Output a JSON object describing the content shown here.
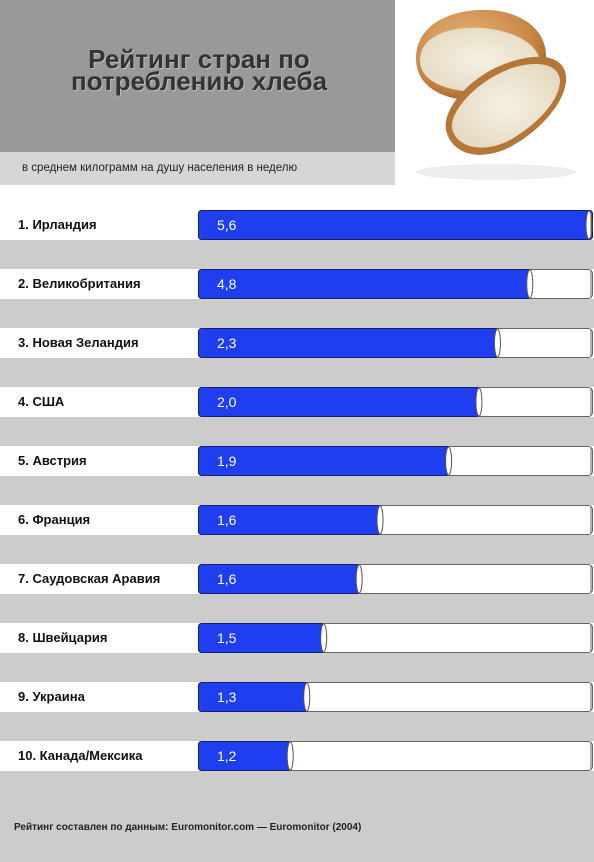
{
  "header": {
    "title_line1": "Рейтинг стран по",
    "title_line2": "потреблению хлеба",
    "subtitle": "в среднем килограмм на душу населения в неделю"
  },
  "colors": {
    "bar_fill": "#1e3ef0",
    "track_fill": "#ffffff",
    "band": "#cccccc",
    "header_bg": "#999999"
  },
  "chart_data": {
    "type": "bar",
    "orientation": "horizontal",
    "title": "Рейтинг стран по потреблению хлеба",
    "subtitle": "в среднем килограмм на душу населения в неделю",
    "categories": [
      "1. Ирландия",
      "2. Великобритания",
      "3. Новая Зеландия",
      "4. США",
      "5. Австрия",
      "6. Франция",
      "7. Саудовская Аравия",
      "8. Швейцария",
      "9. Украина",
      "10. Канада/Мексика"
    ],
    "value_labels": [
      "5,6",
      "4,8",
      "2,3",
      "2,0",
      "1,9",
      "1,6",
      "1,6",
      "1,5",
      "1,3",
      "1,2"
    ],
    "values": [
      5.6,
      4.8,
      2.3,
      2.0,
      1.9,
      1.6,
      1.6,
      1.5,
      1.3,
      1.2
    ],
    "bar_fill_fraction": [
      1.0,
      0.842,
      0.76,
      0.713,
      0.636,
      0.462,
      0.409,
      0.319,
      0.276,
      0.234
    ],
    "grid": false,
    "legend": "none"
  },
  "footer": {
    "source": "Рейтинг составлен по данным: Euromonitor.com — Euromonitor (2004)"
  }
}
